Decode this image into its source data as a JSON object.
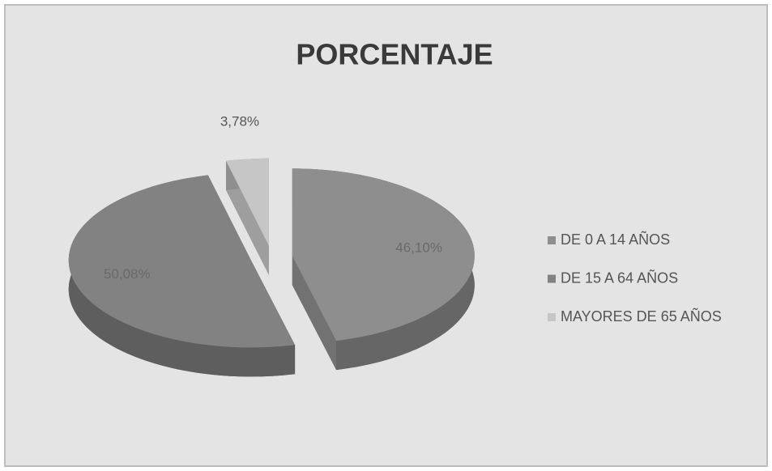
{
  "chart_data": {
    "type": "pie",
    "title": "PORCENTAJE",
    "categories": [
      "DE 0 A 14 AÑOS",
      "DE 15 A 64 AÑOS",
      "MAYORES DE 65 AÑOS"
    ],
    "values": [
      46.1,
      50.08,
      3.78
    ],
    "value_labels": [
      "46,10%",
      "50,08%",
      "3,78%"
    ],
    "colors": [
      "#8e8e8e",
      "#828282",
      "#c6c6c6"
    ],
    "legend": "right"
  }
}
